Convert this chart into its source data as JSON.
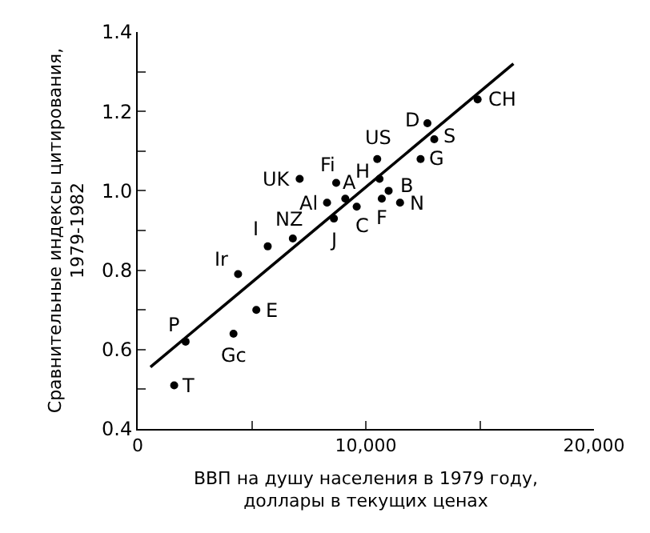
{
  "chart_data": {
    "type": "scatter",
    "xlabel": "ВВП на душу населения в 1979 году,\nдоллары в текущих ценах",
    "ylabel": "Сравнительные индексы цитирования,\n1979-1982",
    "xlim": [
      0,
      20000
    ],
    "xticks": [
      {
        "value": 0,
        "label": "0"
      },
      {
        "value": 5000,
        "label": null
      },
      {
        "value": 10000,
        "label": "10,000"
      },
      {
        "value": 15000,
        "label": null
      },
      {
        "value": 20000,
        "label": "20,000"
      }
    ],
    "ylim": [
      0.4,
      1.4
    ],
    "yticks": [
      {
        "value": 0.4,
        "label": "0.4"
      },
      {
        "value": 0.5,
        "label": null
      },
      {
        "value": 0.6,
        "label": "0.6"
      },
      {
        "value": 0.7,
        "label": null
      },
      {
        "value": 0.8,
        "label": "0.8"
      },
      {
        "value": 0.9,
        "label": null
      },
      {
        "value": 1.0,
        "label": "1.0"
      },
      {
        "value": 1.1,
        "label": null
      },
      {
        "value": 1.2,
        "label": "1.2"
      },
      {
        "value": 1.3,
        "label": null
      },
      {
        "value": 1.4,
        "label": "1.4"
      }
    ],
    "series": [
      {
        "marker": "circle",
        "color": "#000000",
        "x": [
          14900,
          12700,
          13000,
          12400,
          10500,
          10600,
          11000,
          11500,
          10700,
          9600,
          9100,
          8700,
          8300,
          8600,
          7100,
          6800,
          5700,
          4400,
          5200,
          2100,
          4200,
          1600
        ],
        "values": [
          1.23,
          1.17,
          1.13,
          1.08,
          1.08,
          1.03,
          1.0,
          0.97,
          0.98,
          0.96,
          0.98,
          1.02,
          0.97,
          0.93,
          1.03,
          0.88,
          0.86,
          0.79,
          0.7,
          0.62,
          0.64,
          0.51
        ]
      },
      {
        "type": "line",
        "color": "#000000",
        "x": [
          560,
          16470
        ],
        "values": [
          0.556,
          1.32
        ]
      }
    ],
    "annotations": [
      {
        "text": "CH",
        "x": 14900,
        "y": 1.23
      },
      {
        "text": "D",
        "x": 12700,
        "y": 1.17
      },
      {
        "text": "S",
        "x": 13000,
        "y": 1.13
      },
      {
        "text": "G",
        "x": 12400,
        "y": 1.08
      },
      {
        "text": "US",
        "x": 10500,
        "y": 1.08
      },
      {
        "text": "H",
        "x": 10600,
        "y": 1.03
      },
      {
        "text": "B",
        "x": 11000,
        "y": 1.0
      },
      {
        "text": "N",
        "x": 11500,
        "y": 0.97
      },
      {
        "text": "F",
        "x": 10700,
        "y": 0.98
      },
      {
        "text": "C",
        "x": 9600,
        "y": 0.96
      },
      {
        "text": "A",
        "x": 9100,
        "y": 0.98
      },
      {
        "text": "Fi",
        "x": 8700,
        "y": 1.02
      },
      {
        "text": "Al",
        "x": 8300,
        "y": 0.97
      },
      {
        "text": "J",
        "x": 8600,
        "y": 0.93
      },
      {
        "text": "UK",
        "x": 7100,
        "y": 1.03
      },
      {
        "text": "NZ",
        "x": 6800,
        "y": 0.88
      },
      {
        "text": "I",
        "x": 5700,
        "y": 0.86
      },
      {
        "text": "Ir",
        "x": 4400,
        "y": 0.79
      },
      {
        "text": "E",
        "x": 5200,
        "y": 0.7
      },
      {
        "text": "P",
        "x": 2100,
        "y": 0.62
      },
      {
        "text": "Gc",
        "x": 4200,
        "y": 0.64
      },
      {
        "text": "T",
        "x": 1600,
        "y": 0.51
      }
    ]
  }
}
